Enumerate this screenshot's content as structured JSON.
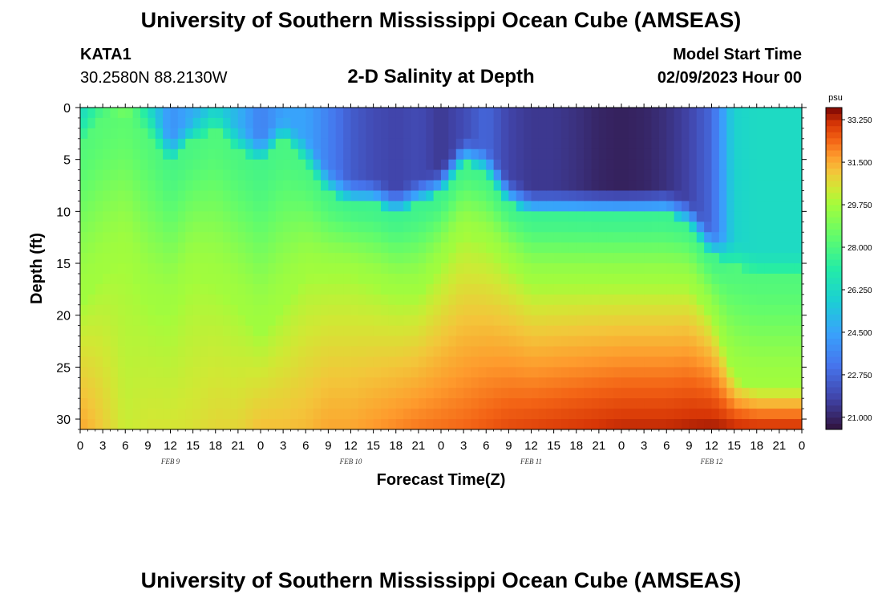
{
  "header": {
    "title": "University of Southern Mississippi Ocean Cube (AMSEAS)",
    "station_id": "KATA1",
    "coords": "30.2580N  88.2130W",
    "plot_title": "2-D Salinity at Depth",
    "model_start_label": "Model Start Time",
    "model_start_value": "02/09/2023 Hour 00"
  },
  "footer": {
    "title": "University of Southern Mississippi Ocean Cube (AMSEAS)"
  },
  "chart_data": {
    "type": "heatmap",
    "title": "2-D Salinity at Depth",
    "xlabel": "Forecast Time(Z)",
    "ylabel": "Depth (ft)",
    "x_unit": "hours from 02/09/2023 00Z",
    "x_range": [
      0,
      96
    ],
    "x_tick_labels": [
      "0",
      "3",
      "6",
      "9",
      "12",
      "15",
      "18",
      "21",
      "0",
      "3",
      "6",
      "9",
      "12",
      "15",
      "18",
      "21",
      "0",
      "3",
      "6",
      "9",
      "12",
      "15",
      "18",
      "21",
      "0",
      "3",
      "6",
      "9",
      "12",
      "15",
      "18",
      "21",
      "0"
    ],
    "day_labels": [
      {
        "label": "FEB 9",
        "hour": 12
      },
      {
        "label": "FEB 10",
        "hour": 36
      },
      {
        "label": "FEB 11",
        "hour": 60
      },
      {
        "label": "FEB 12",
        "hour": 84
      }
    ],
    "y_range": [
      0,
      31
    ],
    "y_ticks": [
      0,
      5,
      10,
      15,
      20,
      25,
      30
    ],
    "colorbar": {
      "unit": "psu",
      "min": 20.5,
      "max": 33.75,
      "tick_labels": [
        "33.250",
        "31.500",
        "29.750",
        "28.000",
        "26.250",
        "24.500",
        "22.750",
        "21.000"
      ],
      "tick_values": [
        33.25,
        31.5,
        29.75,
        28.0,
        26.25,
        24.5,
        22.75,
        21.0
      ]
    },
    "upper_layer_bottom_ft": {
      "hours": [
        0,
        3,
        6,
        9,
        12,
        15,
        18,
        21,
        24,
        27,
        30,
        33,
        36,
        39,
        42,
        45,
        48,
        51,
        54,
        57,
        60,
        63,
        66,
        69,
        72,
        75,
        78,
        81,
        84,
        87,
        90,
        93,
        96
      ],
      "depth": [
        3,
        1,
        1,
        2,
        5,
        3,
        2,
        4,
        5,
        3,
        5,
        8,
        9,
        9,
        10,
        9,
        8,
        5,
        6,
        9,
        10,
        10,
        10,
        10,
        10,
        10,
        10,
        11,
        14,
        15,
        16,
        16,
        16
      ]
    },
    "lower_layer_top_ft": {
      "hours": [
        0,
        3,
        6,
        9,
        12,
        15,
        18,
        21,
        24,
        27,
        30,
        33,
        36,
        39,
        42,
        45,
        48,
        51,
        54,
        57,
        60,
        63,
        66,
        69,
        72,
        75,
        78,
        81,
        84,
        87,
        90,
        93,
        96
      ],
      "depth": [
        19,
        16,
        14,
        19,
        20,
        16,
        17,
        19,
        22,
        19,
        16,
        16,
        16,
        17,
        18,
        18,
        15,
        12,
        13,
        15,
        17,
        17,
        17,
        17,
        17,
        17,
        17,
        17,
        20,
        26,
        27,
        27,
        27
      ]
    },
    "surface_salinity_psu": [
      26.3,
      27.8,
      29.2,
      26.5,
      24.0,
      24.8,
      26.0,
      25.0,
      23.5,
      24.5,
      24.5,
      23.5,
      22.5,
      22.0,
      21.8,
      22.0,
      21.5,
      22.0,
      22.8,
      21.8,
      21.5,
      21.5,
      21.3,
      21.0,
      20.9,
      21.0,
      21.3,
      21.8,
      22.8,
      26.0,
      26.3,
      26.3,
      26.3
    ],
    "bottom_salinity_psu": [
      31.6,
      31.0,
      30.3,
      30.5,
      30.5,
      30.6,
      30.8,
      30.8,
      31.2,
      31.2,
      31.3,
      31.6,
      31.6,
      31.8,
      32.0,
      32.2,
      32.3,
      32.4,
      32.6,
      32.8,
      32.9,
      33.0,
      33.1,
      33.2,
      33.3,
      33.3,
      33.3,
      33.4,
      33.5,
      33.4,
      33.3,
      33.3,
      33.3
    ]
  }
}
